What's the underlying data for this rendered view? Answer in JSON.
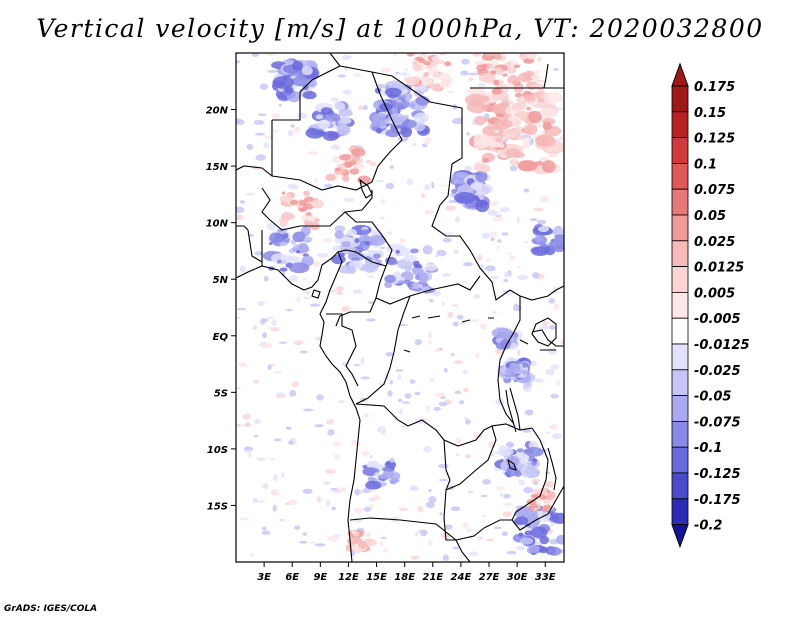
{
  "title": "Vertical velocity [m/s] at 1000hPa, VT: 2020032800",
  "credit": "GrADS: IGES/COLA",
  "map": {
    "lon_range": [
      0,
      35
    ],
    "lat_range": [
      -20,
      25
    ],
    "lon_ticks": [
      {
        "value": 3,
        "label": "3E"
      },
      {
        "value": 6,
        "label": "6E"
      },
      {
        "value": 9,
        "label": "9E"
      },
      {
        "value": 12,
        "label": "12E"
      },
      {
        "value": 15,
        "label": "15E"
      },
      {
        "value": 18,
        "label": "18E"
      },
      {
        "value": 21,
        "label": "21E"
      },
      {
        "value": 24,
        "label": "24E"
      },
      {
        "value": 27,
        "label": "27E"
      },
      {
        "value": 30,
        "label": "30E"
      },
      {
        "value": 33,
        "label": "33E"
      }
    ],
    "lat_ticks": [
      {
        "value": 20,
        "label": "20N"
      },
      {
        "value": 15,
        "label": "15N"
      },
      {
        "value": 10,
        "label": "10N"
      },
      {
        "value": 5,
        "label": "5N"
      },
      {
        "value": 0,
        "label": "EQ"
      },
      {
        "value": -5,
        "label": "5S"
      },
      {
        "value": -10,
        "label": "10S"
      },
      {
        "value": -15,
        "label": "15S"
      }
    ]
  },
  "colorbar": {
    "levels": [
      {
        "label": "0.175",
        "color": "#a01818"
      },
      {
        "label": "0.15",
        "color": "#b82222"
      },
      {
        "label": "0.125",
        "color": "#cf3a3a"
      },
      {
        "label": "0.1",
        "color": "#e05858"
      },
      {
        "label": "0.075",
        "color": "#e67a7a"
      },
      {
        "label": "0.05",
        "color": "#f09a9a"
      },
      {
        "label": "0.025",
        "color": "#f6b8b8"
      },
      {
        "label": "0.0125",
        "color": "#fad4d4"
      },
      {
        "label": "0.005",
        "color": "#fde6e6"
      },
      {
        "label": "-0.005",
        "color": "#ffffff"
      },
      {
        "label": "-0.0125",
        "color": "#e2e2fc"
      },
      {
        "label": "-0.025",
        "color": "#c6c6f6"
      },
      {
        "label": "-0.05",
        "color": "#a9a9f0"
      },
      {
        "label": "-0.075",
        "color": "#8a8ae6"
      },
      {
        "label": "-0.1",
        "color": "#6a6adc"
      },
      {
        "label": "-0.125",
        "color": "#4b4bcc"
      },
      {
        "label": "-0.175",
        "color": "#2c2cb6"
      },
      {
        "label": "-0.2",
        "color": "#14149a"
      }
    ],
    "top_color": "#a01818",
    "bottom_color": "#14149a"
  }
}
